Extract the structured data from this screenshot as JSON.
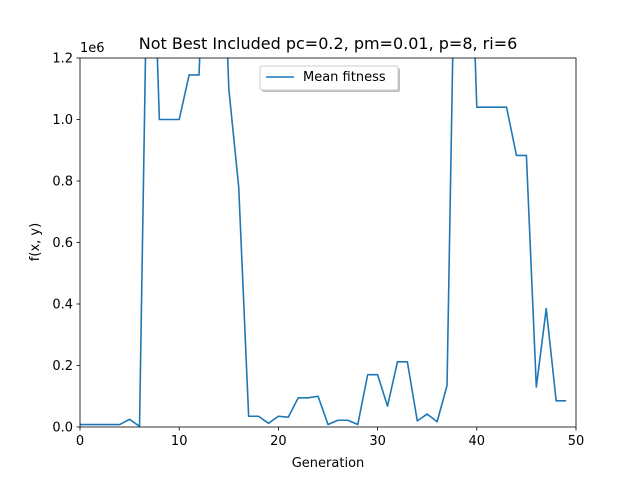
{
  "chart_data": {
    "type": "line",
    "title": "Not Best Included pc=0.2, pm=0.01, p=8, ri=6",
    "xlabel": "Generation",
    "ylabel": "f(x, y)",
    "y_offset_text": "1e6",
    "xlim": [
      0,
      50
    ],
    "ylim": [
      0,
      1200000
    ],
    "xticks": [
      0,
      10,
      20,
      30,
      40,
      50
    ],
    "yticks": [
      0,
      200000,
      400000,
      600000,
      800000,
      1000000,
      1200000
    ],
    "xtick_labels": [
      "0",
      "10",
      "20",
      "30",
      "40",
      "50"
    ],
    "ytick_labels": [
      "0.0",
      "0.2",
      "0.4",
      "0.6",
      "0.8",
      "1.0",
      "1.2"
    ],
    "grid": false,
    "legend_position": "upper center",
    "series": [
      {
        "name": "Mean fitness",
        "color": "#1f77b4",
        "x": [
          0,
          1,
          2,
          3,
          4,
          5,
          6,
          7,
          8,
          9,
          10,
          11,
          12,
          13,
          14,
          15,
          16,
          17,
          18,
          19,
          20,
          21,
          22,
          23,
          24,
          25,
          26,
          27,
          28,
          29,
          30,
          31,
          32,
          33,
          34,
          35,
          36,
          37,
          38,
          39,
          40,
          41,
          42,
          43,
          44,
          45,
          46,
          47,
          48,
          49
        ],
        "y": [
          8000,
          8000,
          8000,
          8000,
          8000,
          25000,
          2000,
          2000000,
          1000000,
          1000000,
          1000000,
          1145000,
          1145000,
          2000000,
          2000000,
          1100000,
          780000,
          35000,
          35000,
          12000,
          35000,
          32000,
          95000,
          95000,
          100000,
          8000,
          22000,
          22000,
          8000,
          170000,
          170000,
          68000,
          212000,
          212000,
          20000,
          42000,
          17000,
          135000,
          2000000,
          2000000,
          1040000,
          1040000,
          1040000,
          1040000,
          883000,
          883000,
          130000,
          385000,
          85000,
          85000
        ]
      }
    ]
  }
}
